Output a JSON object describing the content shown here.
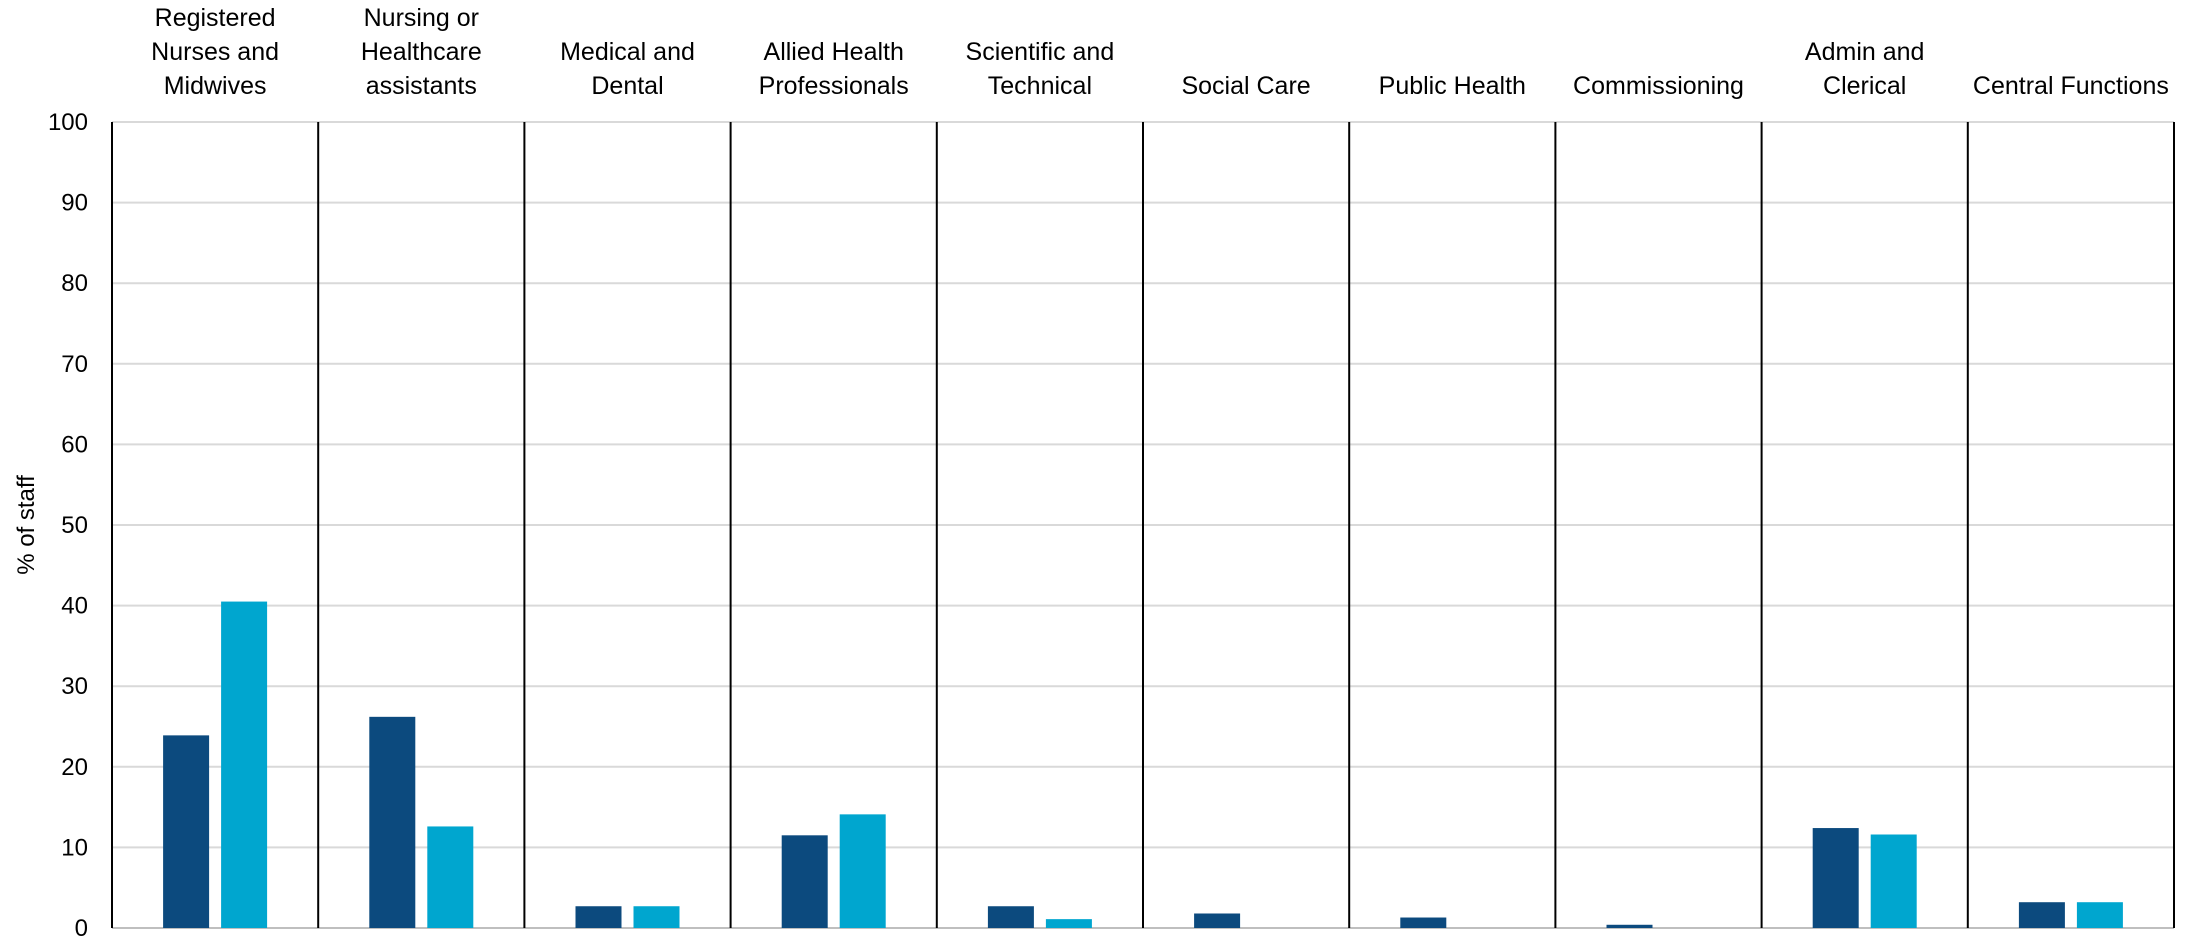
{
  "chart_data": {
    "type": "bar",
    "ylabel": "% of staff",
    "ylim": [
      0,
      100
    ],
    "yticks": [
      0,
      10,
      20,
      30,
      40,
      50,
      60,
      70,
      80,
      90,
      100
    ],
    "grid": true,
    "categories": [
      [
        "Registered",
        "Nurses and",
        "Midwives"
      ],
      [
        "Nursing or",
        "Healthcare",
        "assistants"
      ],
      [
        "Medical and",
        "Dental"
      ],
      [
        "Allied Health",
        "Professionals"
      ],
      [
        "Scientific and",
        "Technical"
      ],
      [
        "Social Care"
      ],
      [
        "Public Health"
      ],
      [
        "Commissioning"
      ],
      [
        "Admin and",
        "Clerical"
      ],
      [
        "Central Functions"
      ]
    ],
    "series": [
      {
        "color": "#0c4a7e",
        "values": [
          23.9,
          26.2,
          2.7,
          11.5,
          2.7,
          1.8,
          1.3,
          0.4,
          12.4,
          3.2
        ]
      },
      {
        "color": "#00a6cf",
        "values": [
          40.5,
          12.6,
          2.7,
          14.1,
          1.1,
          0,
          0,
          0,
          11.6,
          3.2
        ]
      }
    ],
    "colors": {
      "grid": "#d9d9d9",
      "separator": "#000000",
      "axis": "#bfbfbf"
    }
  }
}
